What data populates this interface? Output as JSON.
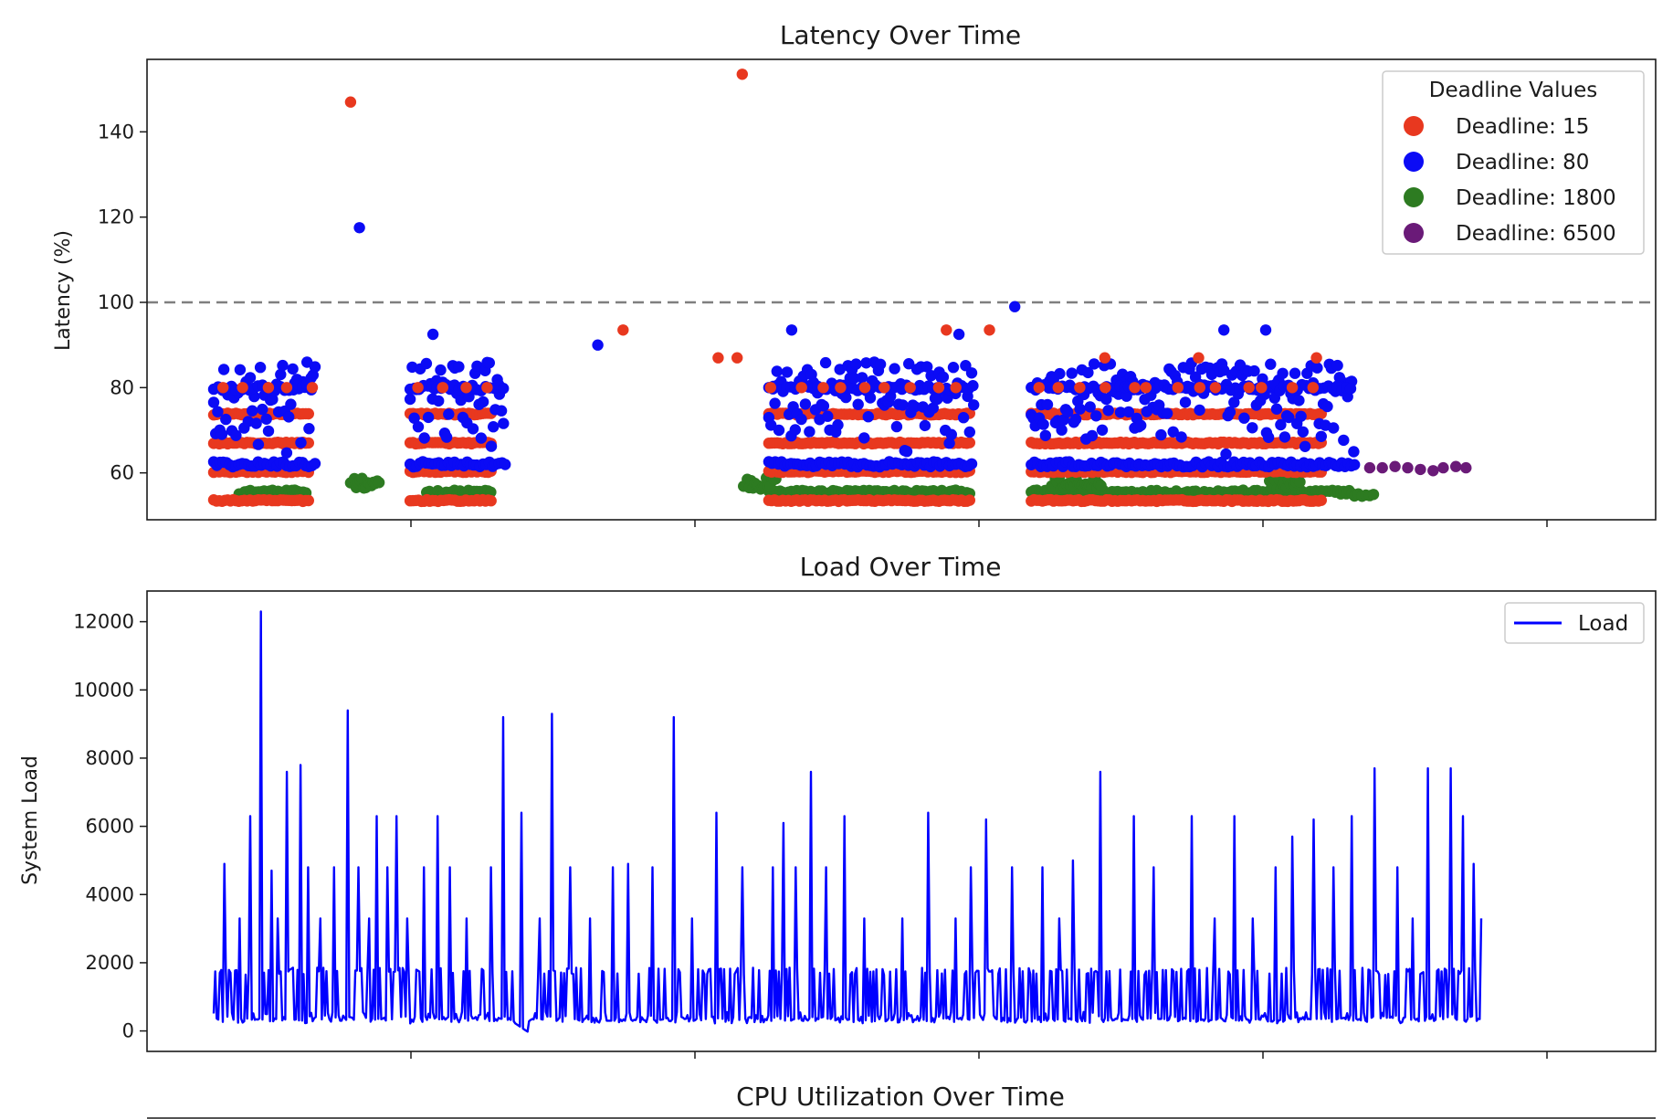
{
  "chart_data": [
    {
      "type": "scatter",
      "title": "Latency Over Time",
      "xlabel": "",
      "ylabel": "Latency (%)",
      "ylim": [
        49,
        157
      ],
      "yticks": [
        60,
        80,
        100,
        120,
        140
      ],
      "xlim": [
        0,
        1000
      ],
      "threshold_line": 100,
      "legend": {
        "title": "Deadline Values",
        "placement": "upper-right",
        "entries": [
          "Deadline: 15",
          "Deadline: 80",
          "Deadline: 1800",
          "Deadline: 6500"
        ]
      },
      "series": [
        {
          "name": "Deadline: 15",
          "color": "#e8381f",
          "bands": [
            53.5,
            60.3,
            67,
            73.8
          ],
          "band_points": [
            [
              0,
              75
            ],
            [
              155,
              220
            ],
            [
              438,
              598
            ],
            [
              645,
              875
            ]
          ],
          "sparse_band": 80,
          "outliers": [
            [
              108,
              147
            ],
            [
              417,
              153.5
            ],
            [
              323,
              93.5
            ],
            [
              578,
              93.5
            ],
            [
              612,
              93.5
            ],
            [
              398,
              87
            ],
            [
              413,
              87
            ],
            [
              703,
              87
            ],
            [
              777,
              87
            ],
            [
              870,
              87
            ]
          ]
        },
        {
          "name": "Deadline: 80",
          "color": "#0b0bf5",
          "bands": [
            62,
            80
          ],
          "band_points": [
            [
              0,
              80
            ],
            [
              155,
              230
            ],
            [
              438,
              600
            ],
            [
              645,
              900
            ]
          ],
          "scatter_range": [
            63,
            86
          ],
          "outliers": [
            [
              115,
              117.5
            ],
            [
              173,
              92.5
            ],
            [
              632,
              99
            ],
            [
              797,
              93.5
            ],
            [
              830,
              93.5
            ],
            [
              456,
              93.5
            ],
            [
              588,
              92.5
            ],
            [
              303,
              90
            ]
          ]
        },
        {
          "name": "Deadline: 1800",
          "color": "#2d7b21",
          "bands": [
            55.5
          ],
          "band_points": [
            [
              20,
              75
            ],
            [
              168,
              220
            ],
            [
              438,
              598
            ],
            [
              645,
              900
            ]
          ],
          "clusters": [
            [
              108,
              131,
              57.5
            ],
            [
              418,
              444,
              57.5
            ],
            [
              661,
              700,
              57.5
            ],
            [
              833,
              858,
              57.5
            ]
          ]
        },
        {
          "name": "Deadline: 6500",
          "color": "#6a1a78",
          "points": [
            [
              912,
              61.2
            ],
            [
              922,
              61.2
            ],
            [
              932,
              61.5
            ],
            [
              942,
              61.2
            ],
            [
              952,
              60.8
            ],
            [
              962,
              60.5
            ],
            [
              970,
              61.2
            ],
            [
              980,
              61.5
            ],
            [
              988,
              61.2
            ]
          ]
        }
      ]
    },
    {
      "type": "line",
      "title": "Load Over Time",
      "xlabel": "",
      "ylabel": "System Load",
      "ylim": [
        -600,
        12900
      ],
      "yticks": [
        0,
        2000,
        4000,
        6000,
        8000,
        10000,
        12000
      ],
      "xlim": [
        0,
        1000
      ],
      "legend": {
        "placement": "upper-right",
        "entries": [
          "Load"
        ]
      },
      "series": [
        {
          "name": "Load",
          "color": "#0000ff",
          "x_range": [
            48,
            880
          ],
          "spikes": [
            [
              55,
              4900
            ],
            [
              65,
              3300
            ],
            [
              72,
              6300
            ],
            [
              79,
              12300
            ],
            [
              86,
              4700
            ],
            [
              90,
              3300
            ],
            [
              96,
              7600
            ],
            [
              105,
              7800
            ],
            [
              110,
              4800
            ],
            [
              118,
              3300
            ],
            [
              127,
              4800
            ],
            [
              136,
              9400
            ],
            [
              143,
              4800
            ],
            [
              150,
              3300
            ],
            [
              155,
              6300
            ],
            [
              162,
              4800
            ],
            [
              168,
              6300
            ],
            [
              175,
              3300
            ],
            [
              186,
              4800
            ],
            [
              195,
              6300
            ],
            [
              203,
              4800
            ],
            [
              214,
              3300
            ],
            [
              230,
              4800
            ],
            [
              238,
              9200
            ],
            [
              250,
              6400
            ],
            [
              262,
              3300
            ],
            [
              270,
              9300
            ],
            [
              282,
              4800
            ],
            [
              295,
              3300
            ],
            [
              310,
              4800
            ],
            [
              320,
              4900
            ],
            [
              336,
              4800
            ],
            [
              350,
              9200
            ],
            [
              362,
              3300
            ],
            [
              378,
              6400
            ],
            [
              395,
              4800
            ],
            [
              415,
              4800
            ],
            [
              422,
              6100
            ],
            [
              430,
              4800
            ],
            [
              440,
              7600
            ],
            [
              450,
              4800
            ],
            [
              462,
              6300
            ],
            [
              475,
              3300
            ],
            [
              500,
              3300
            ],
            [
              517,
              6400
            ],
            [
              535,
              3300
            ],
            [
              545,
              4800
            ],
            [
              555,
              6200
            ],
            [
              572,
              4800
            ],
            [
              592,
              4800
            ],
            [
              603,
              3300
            ],
            [
              612,
              5000
            ],
            [
              630,
              7600
            ],
            [
              652,
              6300
            ],
            [
              665,
              4800
            ],
            [
              690,
              6300
            ],
            [
              705,
              3300
            ],
            [
              718,
              6300
            ],
            [
              730,
              3300
            ],
            [
              745,
              4800
            ],
            [
              756,
              5700
            ],
            [
              770,
              6200
            ],
            [
              783,
              4800
            ],
            [
              795,
              6300
            ],
            [
              810,
              7700
            ],
            [
              825,
              4800
            ],
            [
              835,
              3300
            ],
            [
              845,
              7700
            ],
            [
              860,
              7700
            ],
            [
              868,
              6300
            ],
            [
              875,
              4900
            ],
            [
              880,
              3300
            ]
          ]
        }
      ]
    },
    {
      "type": "line",
      "title": "CPU Utilization Over Time",
      "partially_visible": true
    }
  ]
}
